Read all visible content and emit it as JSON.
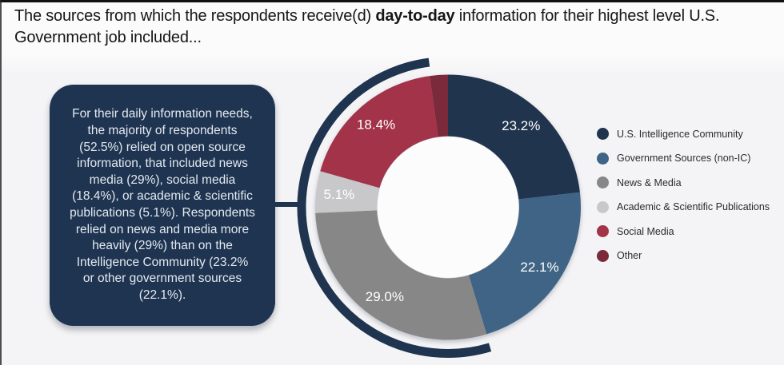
{
  "page": {
    "title": {
      "prefix": "The sources from which the respondents receive(d) ",
      "bold": "day-to-day",
      "suffix": " information for their highest level U.S. Government job included..."
    }
  },
  "callout": {
    "text": "For their daily information needs, the majority of respondents (52.5%) relied on open source information, that included news media (29%), social media (18.4%), or academic & scientific publications (5.1%). Respondents relied on news and media more heavily (29%) than on the Intelligence Community (23.2% or other government sources (22.1%)."
  },
  "legend": {
    "items": [
      {
        "label": "U.S. Intelligence Community",
        "color": "#20344E"
      },
      {
        "label": "Government Sources (non-IC)",
        "color": "#3F6485"
      },
      {
        "label": "News & Media",
        "color": "#878788"
      },
      {
        "label": "Academic & Scientific Publications",
        "color": "#C8C8CA"
      },
      {
        "label": "Social Media",
        "color": "#A23349"
      },
      {
        "label": "Other",
        "color": "#7A2A3A"
      }
    ]
  },
  "colors": {
    "page_background": "#F4F4F6",
    "callout_background": "#1E3450",
    "callout_text": "#E4E9F0",
    "decorative_arc": "#1E344F",
    "donut_hole": "#FCFCFD",
    "slice_label_text": "#FFFFFF"
  },
  "chart_data": {
    "type": "pie",
    "subtype": "donut",
    "title": "The sources from which the respondents receive(d) day-to-day information for their highest level U.S. Government job included...",
    "categories": [
      "U.S. Intelligence Community",
      "Government Sources (non-IC)",
      "News & Media",
      "Academic & Scientific Publications",
      "Social Media",
      "Other"
    ],
    "values": [
      23.2,
      22.1,
      29.0,
      5.1,
      18.4,
      2.2
    ],
    "labels": [
      "23.2%",
      "22.1%",
      "29.0%",
      "5.1%",
      "18.4%",
      ""
    ],
    "colors": [
      "#20344E",
      "#3F6485",
      "#878788",
      "#C8C8CA",
      "#A23349",
      "#7A2A3A"
    ],
    "start_angle": "top, clockwise",
    "legend_position": "right",
    "annotation": "For their daily information needs, the majority of respondents (52.5%) relied on open source information, that included news media (29%), social media (18.4%), or academic & scientific publications (5.1%). Respondents relied on news and media more heavily (29%) than on the Intelligence Community (23.2% or other government sources (22.1%)."
  }
}
